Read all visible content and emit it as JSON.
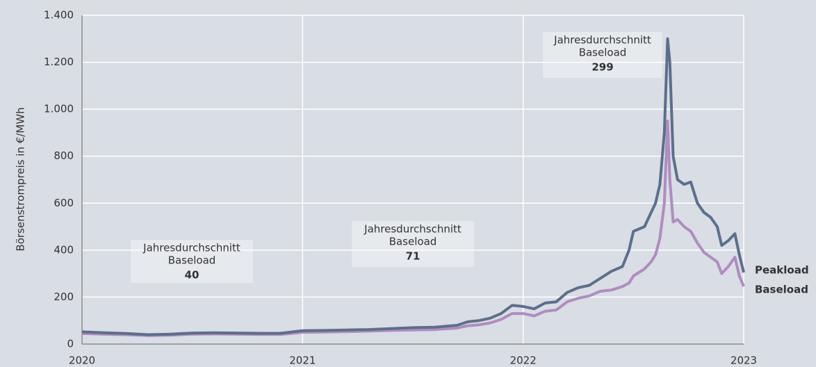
{
  "chart_data": {
    "type": "line",
    "y_label": "Börsenstrompreis in €/MWh",
    "xlim": [
      2020,
      2023
    ],
    "xticks": [
      2020,
      2021,
      2022,
      2023
    ],
    "ylim": [
      0,
      1400
    ],
    "yticks": [
      0,
      200,
      400,
      600,
      800,
      {
        "value": 1000,
        "label": "1.000"
      },
      {
        "value": 1200,
        "label": "1.200"
      },
      {
        "value": 1400,
        "label": "1.400"
      }
    ],
    "grid": true,
    "x": [
      2020,
      2020.1,
      2020.2,
      2020.3,
      2020.4,
      2020.5,
      2020.6,
      2020.7,
      2020.8,
      2020.9,
      2021,
      2021.1,
      2021.2,
      2021.3,
      2021.4,
      2021.5,
      2021.6,
      2021.7,
      2021.75,
      2021.8,
      2021.85,
      2021.9,
      2021.95,
      2022,
      2022.05,
      2022.1,
      2022.15,
      2022.2,
      2022.25,
      2022.3,
      2022.35,
      2022.4,
      2022.45,
      2022.48,
      2022.5,
      2022.55,
      2022.58,
      2022.6,
      2022.62,
      2022.64,
      2022.655,
      2022.665,
      2022.68,
      2022.7,
      2022.73,
      2022.76,
      2022.79,
      2022.82,
      2022.85,
      2022.88,
      2022.9,
      2022.93,
      2022.96,
      2022.98,
      2023
    ],
    "series": [
      {
        "name": "Peakload",
        "color": "#5b6f8d",
        "values": [
          52,
          48,
          45,
          40,
          42,
          47,
          48,
          47,
          46,
          46,
          57,
          58,
          60,
          62,
          66,
          70,
          72,
          80,
          95,
          100,
          110,
          130,
          165,
          160,
          150,
          175,
          180,
          220,
          240,
          250,
          280,
          310,
          330,
          400,
          480,
          500,
          560,
          600,
          680,
          900,
          1300,
          1200,
          800,
          700,
          680,
          690,
          600,
          560,
          540,
          500,
          420,
          440,
          470,
          380,
          305
        ]
      },
      {
        "name": "Baseload",
        "color": "#b08cc0",
        "values": [
          45,
          42,
          40,
          36,
          38,
          42,
          43,
          42,
          41,
          41,
          50,
          51,
          53,
          55,
          58,
          60,
          62,
          68,
          78,
          82,
          90,
          105,
          130,
          130,
          120,
          140,
          145,
          180,
          195,
          205,
          225,
          230,
          245,
          260,
          290,
          320,
          350,
          380,
          450,
          600,
          950,
          700,
          520,
          530,
          500,
          480,
          430,
          390,
          370,
          350,
          300,
          330,
          370,
          290,
          245
        ]
      }
    ],
    "annotations": [
      {
        "title": "Jahresdurchschnitt",
        "label": "Baseload",
        "value": 40
      },
      {
        "title": "Jahresdurchschnitt",
        "label": "Baseload",
        "value": 71
      },
      {
        "title": "Jahresdurchschnitt",
        "label": "Baseload",
        "value": 299
      }
    ]
  }
}
